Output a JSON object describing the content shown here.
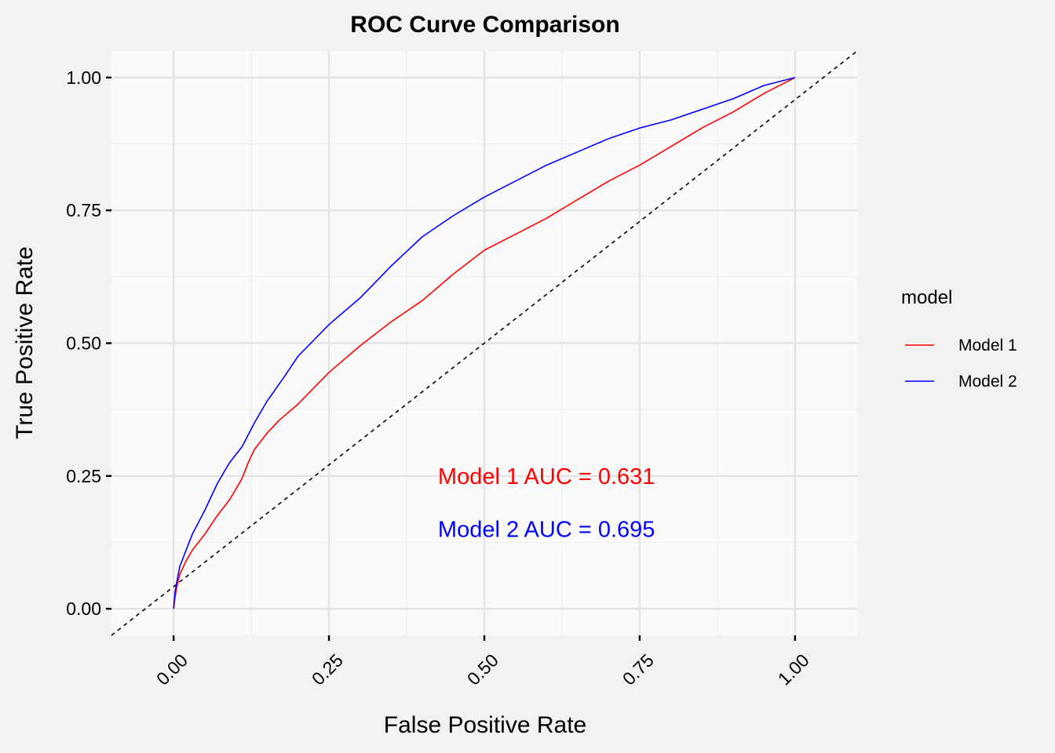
{
  "chart_data": {
    "type": "line",
    "title": "ROC Curve Comparison",
    "xlabel": "False Positive Rate",
    "ylabel": "True Positive Rate",
    "xlim": [
      -0.1,
      1.1
    ],
    "ylim": [
      -0.05,
      1.05
    ],
    "x_ticks": [
      "0.00",
      "0.25",
      "0.50",
      "0.75",
      "1.00"
    ],
    "y_ticks": [
      "0.00",
      "0.25",
      "0.50",
      "0.75",
      "1.00"
    ],
    "grid": true,
    "legend": {
      "title": "model",
      "position": "right",
      "entries": [
        "Model 1",
        "Model 2"
      ]
    },
    "series": [
      {
        "name": "Model 1",
        "color": "#ff0000",
        "x": [
          0,
          0.002,
          0.005,
          0.01,
          0.02,
          0.03,
          0.05,
          0.07,
          0.09,
          0.11,
          0.12,
          0.13,
          0.15,
          0.17,
          0.2,
          0.25,
          0.3,
          0.35,
          0.4,
          0.45,
          0.5,
          0.55,
          0.6,
          0.65,
          0.7,
          0.75,
          0.8,
          0.85,
          0.9,
          0.95,
          1.0
        ],
        "y": [
          0,
          0.02,
          0.04,
          0.065,
          0.09,
          0.11,
          0.14,
          0.175,
          0.205,
          0.245,
          0.275,
          0.3,
          0.33,
          0.355,
          0.385,
          0.445,
          0.495,
          0.54,
          0.58,
          0.63,
          0.675,
          0.705,
          0.735,
          0.77,
          0.805,
          0.835,
          0.87,
          0.905,
          0.935,
          0.97,
          1.0
        ]
      },
      {
        "name": "Model 2",
        "color": "#0000ff",
        "x": [
          0,
          0.002,
          0.005,
          0.01,
          0.02,
          0.03,
          0.05,
          0.07,
          0.09,
          0.11,
          0.13,
          0.15,
          0.18,
          0.2,
          0.25,
          0.3,
          0.35,
          0.4,
          0.45,
          0.5,
          0.55,
          0.6,
          0.65,
          0.7,
          0.75,
          0.8,
          0.85,
          0.9,
          0.95,
          1.0
        ],
        "y": [
          0,
          0.03,
          0.05,
          0.08,
          0.11,
          0.14,
          0.185,
          0.235,
          0.275,
          0.305,
          0.35,
          0.39,
          0.44,
          0.475,
          0.535,
          0.585,
          0.645,
          0.7,
          0.74,
          0.775,
          0.805,
          0.835,
          0.86,
          0.885,
          0.905,
          0.92,
          0.94,
          0.96,
          0.985,
          1.0
        ]
      }
    ],
    "reference_line": {
      "x": [
        -0.1,
        1.1
      ],
      "y": [
        -0.05,
        1.05
      ],
      "style": "dashed",
      "color": "#000000"
    },
    "annotations": [
      {
        "text": "Model 1 AUC = 0.631",
        "x": 0.6,
        "y": 0.25,
        "color": "#ff0000"
      },
      {
        "text": "Model 2 AUC = 0.695",
        "x": 0.6,
        "y": 0.15,
        "color": "#0000ff"
      }
    ]
  }
}
